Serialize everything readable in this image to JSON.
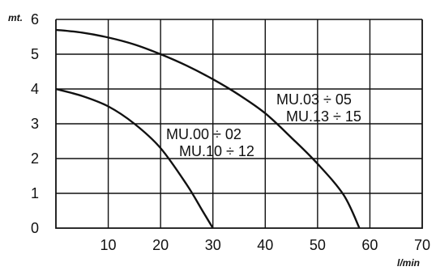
{
  "chart_data": {
    "type": "line",
    "ylabel": "mt.",
    "xlabel": "l/min",
    "xlim": [
      0,
      70
    ],
    "ylim": [
      0,
      6
    ],
    "x_ticks": [
      10,
      20,
      30,
      40,
      50,
      60,
      70
    ],
    "y_ticks": [
      0,
      1,
      2,
      3,
      4,
      5,
      6
    ],
    "grid": true,
    "series": [
      {
        "labels": [
          "MU.00 ÷ 02",
          "MU.10 ÷ 12"
        ],
        "x": [
          0,
          5,
          10,
          15,
          20,
          25,
          28,
          30
        ],
        "y": [
          4.0,
          3.8,
          3.5,
          3.0,
          2.3,
          1.25,
          0.5,
          0
        ]
      },
      {
        "labels": [
          "MU.03 ÷ 05",
          "MU.13 ÷ 15"
        ],
        "x": [
          0,
          5,
          10,
          15,
          20,
          25,
          30,
          35,
          40,
          45,
          50,
          55,
          58
        ],
        "y": [
          5.7,
          5.62,
          5.48,
          5.28,
          5.0,
          4.67,
          4.28,
          3.83,
          3.3,
          2.6,
          1.85,
          0.95,
          0
        ]
      }
    ]
  }
}
